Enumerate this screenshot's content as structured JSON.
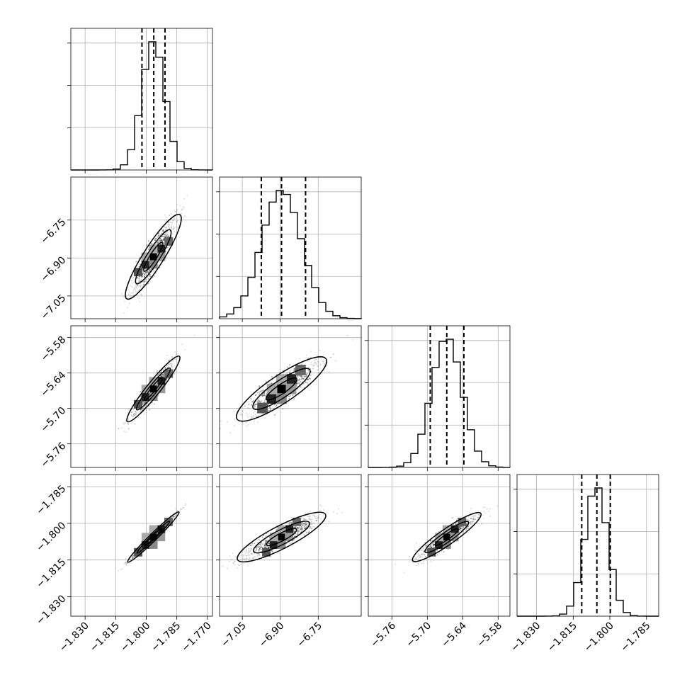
{
  "chart_data": {
    "type": "corner",
    "n_params": 4,
    "params": [
      {
        "name": "",
        "mean": -1.7965,
        "std": 0.0057,
        "quantiles": [
          -1.8021,
          -1.7963,
          -1.7908
        ],
        "range": [
          -1.837,
          -1.7675
        ],
        "ticks": [
          -1.83,
          -1.815,
          -1.8,
          -1.785,
          -1.77
        ],
        "tick_labels": [
          "−1.830",
          "−1.815",
          "−1.800",
          "−1.785",
          "−1.770"
        ]
      },
      {
        "name": "",
        "mean": -6.895,
        "std": 0.079,
        "quantiles": [
          -6.975,
          -6.895,
          -6.8
        ],
        "range": [
          -7.14,
          -6.58
        ],
        "ticks": [
          -7.05,
          -6.9,
          -6.75
        ],
        "tick_labels": [
          "−7.05",
          "−6.90",
          "−6.75"
        ]
      },
      {
        "name": "",
        "mean": -5.667,
        "std": 0.026,
        "quantiles": [
          -5.695,
          -5.667,
          -5.638
        ],
        "range": [
          -5.8,
          -5.56
        ],
        "ticks": [
          -5.76,
          -5.7,
          -5.64,
          -5.58
        ],
        "tick_labels": [
          "−5.76",
          "−5.70",
          "−5.64",
          "−5.58"
        ]
      },
      {
        "name": "",
        "mean": -1.8056,
        "std": 0.0047,
        "quantiles": [
          -1.8115,
          -1.8053,
          -1.7998
        ],
        "range": [
          -1.838,
          -1.78
        ],
        "ticks": [
          -1.83,
          -1.815,
          -1.8,
          -1.785
        ],
        "tick_labels": [
          "−1.830",
          "−1.815",
          "−1.800",
          "−1.785"
        ]
      }
    ],
    "correlations": {
      "1-0": 0.92,
      "2-0": 0.95,
      "2-1": 0.88,
      "3-0": 0.99,
      "3-1": 0.9,
      "3-2": 0.93
    },
    "quantile_levels": [
      0.16,
      0.5,
      0.84
    ],
    "grid": true,
    "colors": {
      "line": "#000000",
      "grid": "#b0b0b0",
      "points": "#444444"
    }
  }
}
